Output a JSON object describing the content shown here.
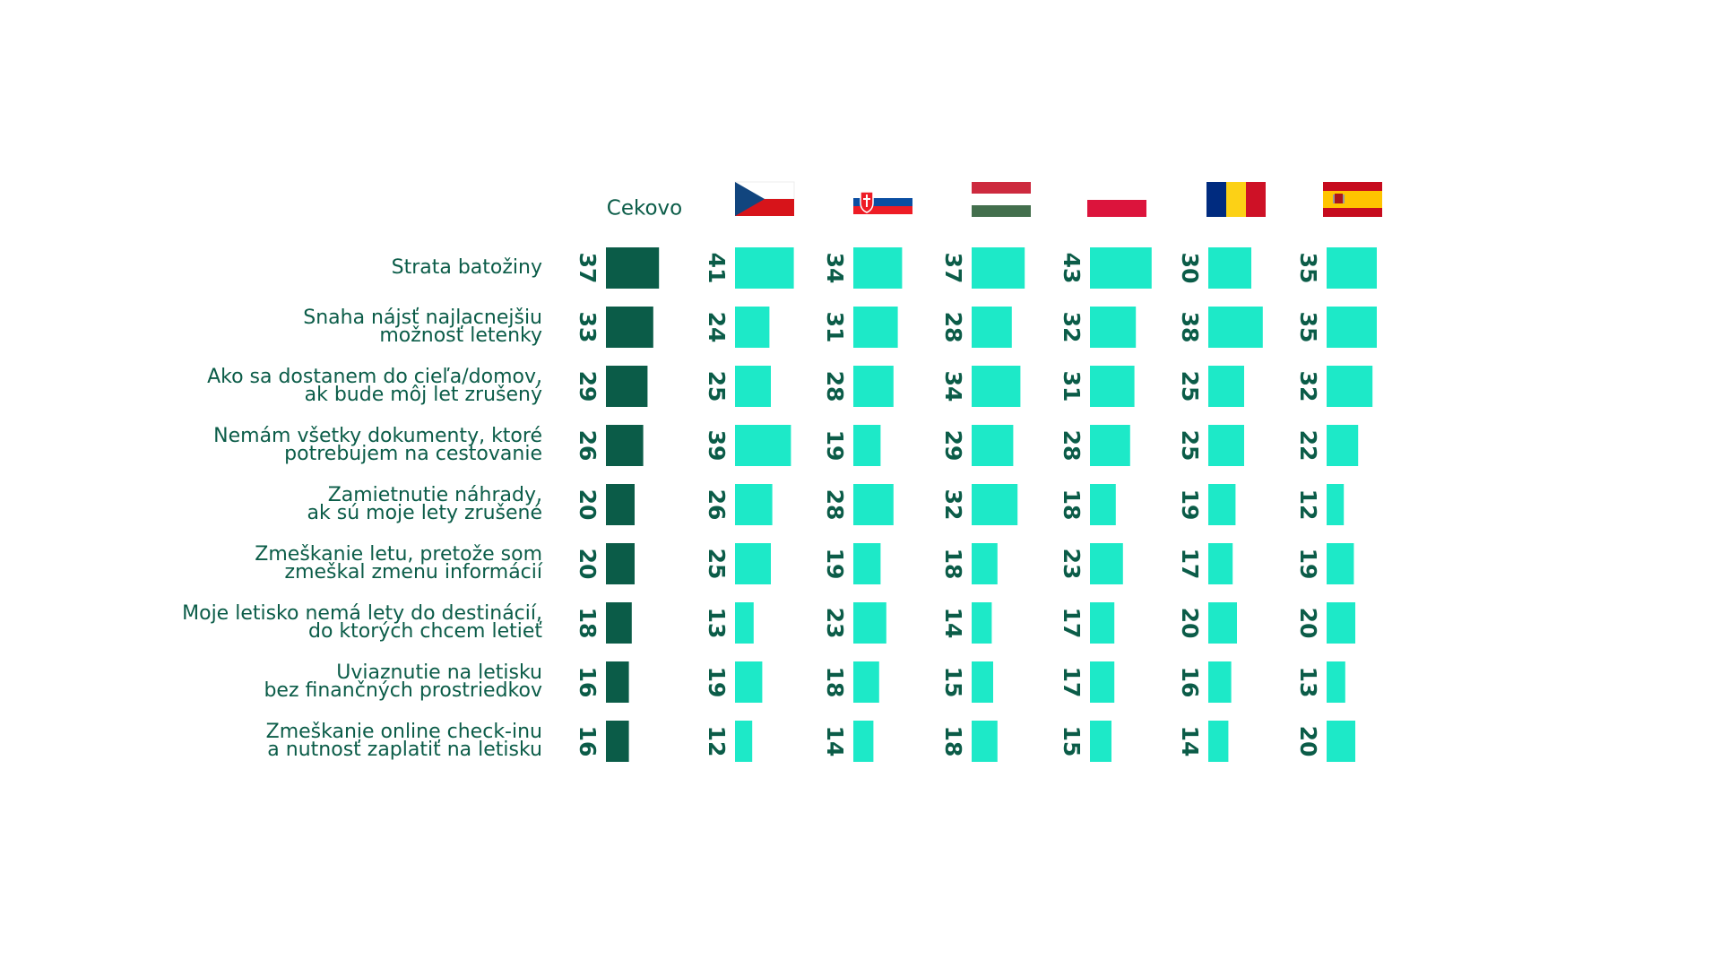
{
  "chart_data": {
    "type": "bar",
    "orientation": "horizontal",
    "categories": [
      [
        "Strata batožiny"
      ],
      [
        "Snaha nájsť najlacnejšiu",
        "možnosť letenky"
      ],
      [
        "Ako sa dostanem do cieľa/domov,",
        "ak bude môj let zrušený"
      ],
      [
        "Nemám všetky dokumenty, ktoré",
        "potrebujem na cestovanie"
      ],
      [
        "Zamietnutie náhrady,",
        "ak sú moje lety zrušené"
      ],
      [
        "Zmeškanie letu, pretože som",
        "zmeškal zmenu informácií"
      ],
      [
        "Moje letisko nemá lety do destinácií,",
        "do ktorých chcem letieť"
      ],
      [
        "Uviaznutie na letisku",
        "bez finančných prostriedkov"
      ],
      [
        "Zmeškanie online check-inu",
        "a nutnosť zaplatiť na letisku"
      ]
    ],
    "series": [
      {
        "name": "Cekovo",
        "color": "#0b5c48",
        "values": [
          37,
          33,
          29,
          26,
          20,
          20,
          18,
          16,
          16
        ]
      },
      {
        "color": "#1de9c8",
        "values": [
          41,
          24,
          25,
          39,
          26,
          25,
          13,
          19,
          12
        ]
      },
      {
        "color": "#1de9c8",
        "values": [
          34,
          31,
          28,
          19,
          28,
          19,
          23,
          18,
          14
        ]
      },
      {
        "color": "#1de9c8",
        "values": [
          37,
          28,
          34,
          29,
          32,
          18,
          14,
          15,
          18
        ]
      },
      {
        "color": "#1de9c8",
        "values": [
          43,
          32,
          31,
          28,
          18,
          23,
          17,
          17,
          15
        ]
      },
      {
        "color": "#1de9c8",
        "values": [
          30,
          38,
          25,
          25,
          19,
          17,
          20,
          16,
          14
        ]
      },
      {
        "color": "#1de9c8",
        "values": [
          35,
          35,
          32,
          22,
          12,
          19,
          20,
          13,
          20
        ]
      }
    ]
  }
}
